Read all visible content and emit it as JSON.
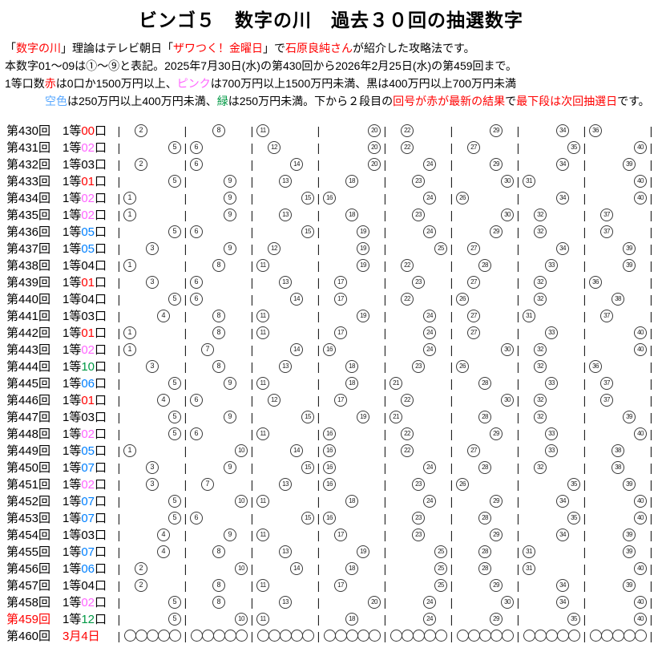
{
  "page": {
    "title": "ビンゴ５　数字の川　過去３０回の抽選数字"
  },
  "colors": {
    "black": "#000000",
    "red": "#ff0000",
    "pink": "#ff66ff",
    "sky": "#0080ff",
    "sky_light": "#59a8ff",
    "green": "#009944"
  },
  "intro_lines": [
    {
      "indent": false,
      "segments": [
        {
          "text": "「",
          "color": "black"
        },
        {
          "text": "数字の川",
          "color": "red"
        },
        {
          "text": "」理論はテレビ朝日「",
          "color": "black"
        },
        {
          "text": "ザワつく！金曜日",
          "color": "red"
        },
        {
          "text": "」で",
          "color": "black"
        },
        {
          "text": "石原良純さん",
          "color": "red"
        },
        {
          "text": "が紹介した攻略法です。",
          "color": "black"
        }
      ]
    },
    {
      "indent": false,
      "segments": [
        {
          "text": "本数字01～09は①～⑨と表記。2025年7月30日(水)の第430回から2026年2月25日(水)の第459回まで。",
          "color": "black"
        }
      ]
    },
    {
      "indent": false,
      "segments": [
        {
          "text": "1等口数",
          "color": "black"
        },
        {
          "text": "赤",
          "color": "red"
        },
        {
          "text": "は0口か1500万円以上、",
          "color": "black"
        },
        {
          "text": "ピンク",
          "color": "pink"
        },
        {
          "text": "は700万円以上1500万円未満、黒は400万円以上700万円未満",
          "color": "black"
        }
      ]
    },
    {
      "indent": true,
      "segments": [
        {
          "text": "空色",
          "color": "sky_light"
        },
        {
          "text": "は250万円以上400万円未満、",
          "color": "black"
        },
        {
          "text": "緑",
          "color": "green"
        },
        {
          "text": "は250万円未満。下から２段目の",
          "color": "black"
        },
        {
          "text": "回号が赤が最新の結果",
          "color": "red"
        },
        {
          "text": "で",
          "color": "black"
        },
        {
          "text": "最下段は次回抽選日",
          "color": "red"
        },
        {
          "text": "です。",
          "color": "black"
        }
      ]
    }
  ],
  "prize_prefix": "1等",
  "prize_suffix": "口",
  "chart_data": {
    "type": "table",
    "title": "ビンゴ５　数字の川　過去３０回の抽選数字",
    "number_groups": [
      [
        1,
        5
      ],
      [
        6,
        10
      ],
      [
        11,
        15
      ],
      [
        16,
        20
      ],
      [
        21,
        25
      ],
      [
        26,
        30
      ],
      [
        31,
        35
      ],
      [
        36,
        40
      ]
    ],
    "rows": [
      {
        "round": "第430回",
        "round_color": "black",
        "count": "00",
        "count_color": "red",
        "numbers": [
          2,
          8,
          11,
          20,
          22,
          29,
          34,
          36
        ]
      },
      {
        "round": "第431回",
        "round_color": "black",
        "count": "02",
        "count_color": "pink",
        "numbers": [
          5,
          6,
          12,
          20,
          22,
          27,
          35,
          40
        ]
      },
      {
        "round": "第432回",
        "round_color": "black",
        "count": "03",
        "count_color": "black",
        "numbers": [
          2,
          6,
          14,
          20,
          24,
          29,
          34,
          39
        ]
      },
      {
        "round": "第433回",
        "round_color": "black",
        "count": "01",
        "count_color": "red",
        "numbers": [
          5,
          9,
          13,
          18,
          23,
          30,
          31,
          40
        ]
      },
      {
        "round": "第434回",
        "round_color": "black",
        "count": "02",
        "count_color": "pink",
        "numbers": [
          1,
          9,
          15,
          16,
          24,
          26,
          34,
          40
        ]
      },
      {
        "round": "第435回",
        "round_color": "black",
        "count": "02",
        "count_color": "pink",
        "numbers": [
          1,
          9,
          13,
          18,
          23,
          30,
          32,
          37
        ]
      },
      {
        "round": "第436回",
        "round_color": "black",
        "count": "05",
        "count_color": "sky",
        "numbers": [
          5,
          6,
          15,
          19,
          24,
          29,
          32,
          37
        ]
      },
      {
        "round": "第437回",
        "round_color": "black",
        "count": "05",
        "count_color": "sky",
        "numbers": [
          3,
          9,
          12,
          19,
          25,
          27,
          34,
          39
        ]
      },
      {
        "round": "第438回",
        "round_color": "black",
        "count": "04",
        "count_color": "black",
        "numbers": [
          1,
          8,
          11,
          19,
          22,
          28,
          33,
          39
        ]
      },
      {
        "round": "第439回",
        "round_color": "black",
        "count": "01",
        "count_color": "red",
        "numbers": [
          3,
          6,
          13,
          17,
          23,
          27,
          32,
          36
        ]
      },
      {
        "round": "第440回",
        "round_color": "black",
        "count": "04",
        "count_color": "black",
        "numbers": [
          5,
          6,
          14,
          17,
          22,
          26,
          32,
          38
        ]
      },
      {
        "round": "第441回",
        "round_color": "black",
        "count": "03",
        "count_color": "black",
        "numbers": [
          4,
          8,
          11,
          19,
          24,
          27,
          31,
          37
        ]
      },
      {
        "round": "第442回",
        "round_color": "black",
        "count": "01",
        "count_color": "red",
        "numbers": [
          1,
          8,
          11,
          17,
          24,
          27,
          33,
          40
        ]
      },
      {
        "round": "第443回",
        "round_color": "black",
        "count": "02",
        "count_color": "pink",
        "numbers": [
          1,
          7,
          14,
          16,
          24,
          30,
          32,
          40
        ]
      },
      {
        "round": "第444回",
        "round_color": "black",
        "count": "10",
        "count_color": "green",
        "numbers": [
          3,
          8,
          13,
          18,
          23,
          26,
          32,
          36
        ]
      },
      {
        "round": "第445回",
        "round_color": "black",
        "count": "06",
        "count_color": "sky",
        "numbers": [
          5,
          9,
          11,
          18,
          21,
          28,
          33,
          37
        ]
      },
      {
        "round": "第446回",
        "round_color": "black",
        "count": "01",
        "count_color": "red",
        "numbers": [
          4,
          6,
          12,
          17,
          22,
          30,
          32,
          37
        ]
      },
      {
        "round": "第447回",
        "round_color": "black",
        "count": "03",
        "count_color": "black",
        "numbers": [
          5,
          9,
          15,
          19,
          21,
          28,
          32,
          39
        ]
      },
      {
        "round": "第448回",
        "round_color": "black",
        "count": "02",
        "count_color": "pink",
        "numbers": [
          5,
          6,
          11,
          16,
          22,
          29,
          33,
          40
        ]
      },
      {
        "round": "第449回",
        "round_color": "black",
        "count": "05",
        "count_color": "sky",
        "numbers": [
          1,
          10,
          14,
          16,
          22,
          27,
          33,
          38
        ]
      },
      {
        "round": "第450回",
        "round_color": "black",
        "count": "07",
        "count_color": "sky",
        "numbers": [
          3,
          9,
          15,
          16,
          24,
          28,
          32,
          38
        ]
      },
      {
        "round": "第451回",
        "round_color": "black",
        "count": "02",
        "count_color": "pink",
        "numbers": [
          3,
          7,
          13,
          16,
          23,
          26,
          35,
          39
        ]
      },
      {
        "round": "第452回",
        "round_color": "black",
        "count": "07",
        "count_color": "sky",
        "numbers": [
          5,
          10,
          11,
          18,
          24,
          29,
          34,
          40
        ]
      },
      {
        "round": "第453回",
        "round_color": "black",
        "count": "07",
        "count_color": "sky",
        "numbers": [
          5,
          6,
          15,
          16,
          23,
          28,
          35,
          40
        ]
      },
      {
        "round": "第454回",
        "round_color": "black",
        "count": "03",
        "count_color": "black",
        "numbers": [
          4,
          9,
          11,
          17,
          23,
          29,
          34,
          39
        ]
      },
      {
        "round": "第455回",
        "round_color": "black",
        "count": "07",
        "count_color": "sky",
        "numbers": [
          4,
          8,
          13,
          19,
          25,
          28,
          31,
          39
        ]
      },
      {
        "round": "第456回",
        "round_color": "black",
        "count": "06",
        "count_color": "sky",
        "numbers": [
          2,
          10,
          14,
          18,
          25,
          28,
          31,
          40
        ]
      },
      {
        "round": "第457回",
        "round_color": "black",
        "count": "04",
        "count_color": "black",
        "numbers": [
          2,
          8,
          11,
          17,
          25,
          29,
          34,
          39
        ]
      },
      {
        "round": "第458回",
        "round_color": "black",
        "count": "02",
        "count_color": "pink",
        "numbers": [
          5,
          8,
          13,
          20,
          24,
          30,
          34,
          40
        ]
      },
      {
        "round": "第459回",
        "round_color": "red",
        "count": "12",
        "count_color": "green",
        "numbers": [
          5,
          10,
          11,
          18,
          24,
          29,
          35,
          40
        ]
      },
      {
        "round": "第460回",
        "round_color": "black",
        "date": "3月4日",
        "date_color": "red",
        "placeholder": true,
        "numbers": []
      }
    ]
  }
}
